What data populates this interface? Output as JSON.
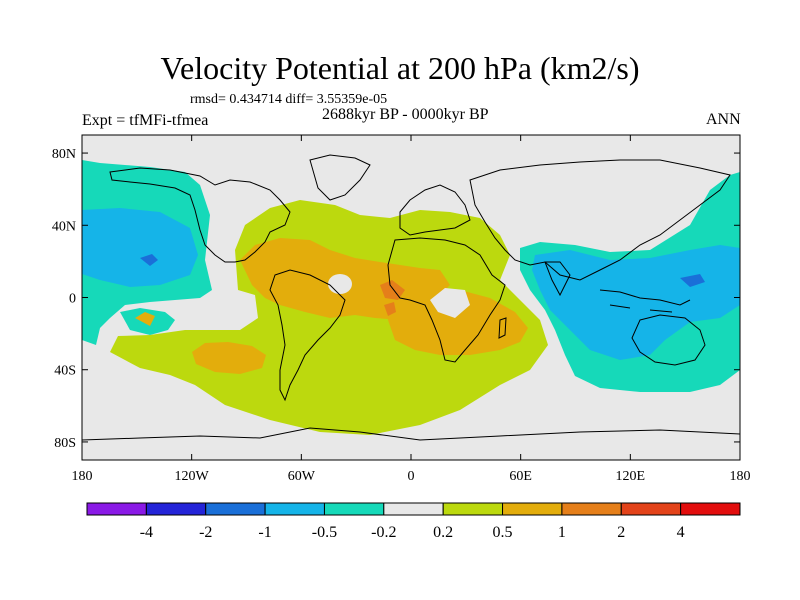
{
  "header": {
    "title": "Velocity Potential at 200 hPa (km2/s)",
    "stats": "rmsd= 0.434714 diff= 3.55359e-05",
    "experiment": "Expt = tfMFi-tfmea",
    "period": "2688kyr BP - 0000kyr BP",
    "season": "ANN"
  },
  "map": {
    "projection": "cylindrical equidistant",
    "lat_range": [
      -90,
      90
    ],
    "lon_range": [
      -180,
      180
    ],
    "lat_labels": [
      "80N",
      "40N",
      "0",
      "40S",
      "80S"
    ],
    "lon_labels": [
      "180",
      "120W",
      "60W",
      "0",
      "60E",
      "120E",
      "180"
    ]
  },
  "colorbar": {
    "labels": [
      "-4",
      "-2",
      "-1",
      "-0.5",
      "-0.2",
      "0.2",
      "0.5",
      "1",
      "2",
      "4"
    ],
    "colors": [
      "#8a19e6",
      "#2424d8",
      "#1a6fd8",
      "#15b4e8",
      "#16d9b9",
      "#e8e8e8",
      "#bcd90e",
      "#e3ad0c",
      "#e57f1a",
      "#e3431a",
      "#e20d0d"
    ]
  },
  "colors": {
    "background": "#e8e8e8",
    "coast": "#000000"
  }
}
